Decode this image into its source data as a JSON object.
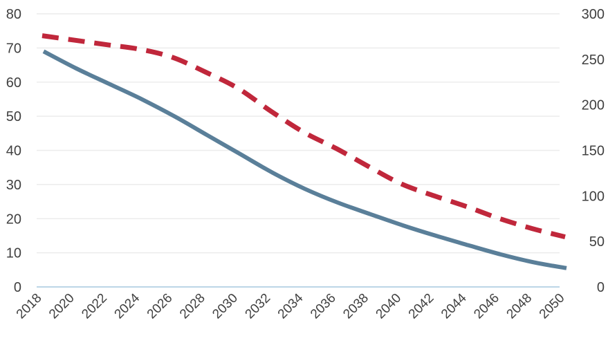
{
  "chart_data": {
    "type": "line",
    "title": "",
    "xlabel": "",
    "ylabel": "",
    "y2label": "",
    "xlim": [
      2018,
      2050
    ],
    "ylim": [
      0,
      80
    ],
    "y2lim": [
      0,
      300
    ],
    "x_ticks": [
      2018,
      2020,
      2022,
      2024,
      2026,
      2028,
      2030,
      2032,
      2034,
      2036,
      2038,
      2040,
      2042,
      2044,
      2046,
      2048,
      2050
    ],
    "y_ticks": [
      0,
      10,
      20,
      30,
      40,
      50,
      60,
      70,
      80
    ],
    "y2_ticks": [
      0,
      50,
      100,
      150,
      200,
      250,
      300
    ],
    "grid": "horizontal",
    "legend": "none",
    "series": [
      {
        "axis": "left",
        "style": "solid",
        "color": "#5a7f99",
        "x": [
          2018,
          2020,
          2022,
          2024,
          2026,
          2028,
          2030,
          2032,
          2034,
          2036,
          2038,
          2040,
          2042,
          2044,
          2046,
          2048,
          2050
        ],
        "values": [
          69,
          64,
          59.5,
          55,
          50,
          44.5,
          39,
          33.5,
          28.7,
          24.7,
          21.3,
          18,
          15,
          12.2,
          9.5,
          7.2,
          5.5
        ]
      },
      {
        "axis": "right",
        "style": "dashed",
        "color": "#c0273b",
        "x": [
          2018,
          2020,
          2022,
          2024,
          2026,
          2028,
          2030,
          2032,
          2034,
          2036,
          2038,
          2040,
          2042,
          2044,
          2046,
          2048,
          2050
        ],
        "values": [
          276,
          271,
          266,
          261,
          252,
          236,
          218,
          193,
          170,
          152,
          132,
          113,
          100,
          88,
          75,
          64,
          55
        ]
      }
    ]
  }
}
